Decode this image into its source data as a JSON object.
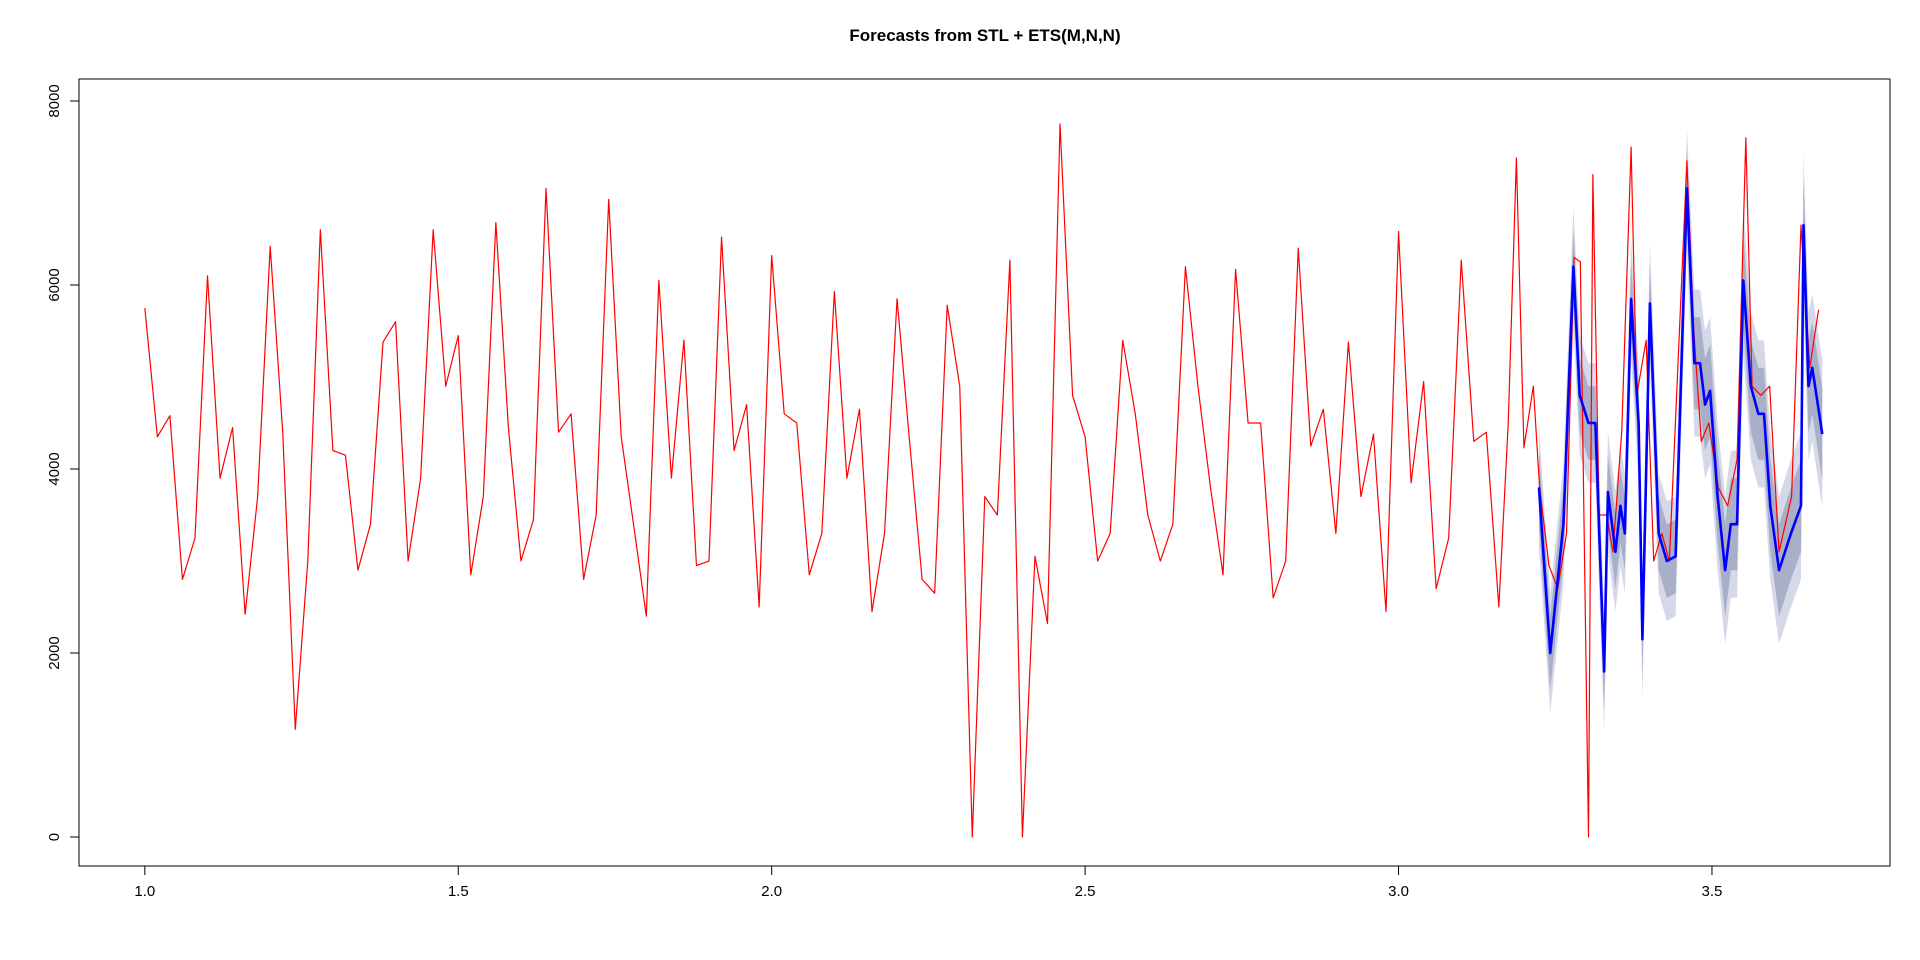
{
  "chart_data": {
    "type": "line",
    "title": "Forecasts from STL +  ETS(M,N,N)",
    "xlim": [
      0.895,
      3.784
    ],
    "ylim": [
      -315,
      8239
    ],
    "xticks": [
      {
        "value": 1,
        "label": "1.0"
      },
      1.5,
      {
        "value": 2,
        "label": "2.0"
      },
      2.5,
      {
        "value": 3,
        "label": "3.0"
      },
      3.5
    ],
    "yticks": [
      0,
      2000,
      4000,
      6000,
      8000
    ],
    "series": [
      {
        "color": "#ff0000",
        "x": [
          1,
          1.02,
          1.04,
          1.06,
          1.08,
          1.1,
          1.12,
          1.14,
          1.16,
          1.18,
          1.2,
          1.22,
          1.24,
          1.26,
          1.28,
          1.3,
          1.32,
          1.34,
          1.36,
          1.38,
          1.4,
          1.42,
          1.44,
          1.46,
          1.48,
          1.5,
          1.52,
          1.54,
          1.56,
          1.58,
          1.6,
          1.62,
          1.64,
          1.66,
          1.68,
          1.7,
          1.72,
          1.74,
          1.76,
          1.78,
          1.8,
          1.82,
          1.84,
          1.86,
          1.88,
          1.9,
          1.92,
          1.94,
          1.96,
          1.98,
          2,
          2.02,
          2.04,
          2.06,
          2.08,
          2.1,
          2.12,
          2.14,
          2.16,
          2.18,
          2.2,
          2.22,
          2.24,
          2.26,
          2.28,
          2.3,
          2.32,
          2.34,
          2.36,
          2.38,
          2.4,
          2.42,
          2.44,
          2.46,
          2.48,
          2.5,
          2.52,
          2.54,
          2.56,
          2.58,
          2.6,
          2.62,
          2.64,
          2.66,
          2.68,
          2.7,
          2.72,
          2.74,
          2.76,
          2.78,
          2.8,
          2.82,
          2.84,
          2.86,
          2.88,
          2.9,
          2.92,
          2.94,
          2.96,
          2.98,
          3,
          3.02,
          3.04,
          3.06,
          3.08,
          3.1,
          3.12,
          3.14,
          3.16,
          3.175,
          3.188,
          3.2,
          3.215,
          3.225,
          3.24,
          3.254,
          3.268,
          3.28,
          3.29,
          3.303,
          3.31,
          3.32,
          3.332,
          3.342,
          3.356,
          3.371,
          3.38,
          3.395,
          3.407,
          3.42,
          3.432,
          3.46,
          3.47,
          3.483,
          3.495,
          3.51,
          3.525,
          3.54,
          3.554,
          3.564,
          3.578,
          3.592,
          3.607,
          3.627,
          3.642,
          3.656,
          3.67
        ],
        "values": [
          5750,
          4350,
          4580,
          2800,
          3250,
          6100,
          3900,
          4450,
          2420,
          3700,
          6420,
          4400,
          1170,
          3000,
          6600,
          4200,
          4150,
          2900,
          3400,
          5380,
          5600,
          3000,
          3900,
          6600,
          4900,
          5450,
          2850,
          3700,
          6680,
          4450,
          3000,
          3450,
          7050,
          4400,
          4600,
          2800,
          3500,
          6930,
          4350,
          3380,
          2400,
          6050,
          3900,
          5400,
          2950,
          3000,
          6520,
          4200,
          4700,
          2500,
          6320,
          4600,
          4500,
          2850,
          3300,
          5930,
          3900,
          4650,
          2450,
          3300,
          5850,
          4300,
          2800,
          2650,
          5780,
          4900,
          0,
          3700,
          3500,
          6270,
          0,
          3050,
          2320,
          7750,
          4800,
          4350,
          3000,
          3300,
          5400,
          4600,
          3500,
          3000,
          3400,
          6200,
          4900,
          3800,
          2850,
          6170,
          4500,
          4500,
          2600,
          3000,
          6400,
          4250,
          4650,
          3300,
          5380,
          3700,
          4380,
          2450,
          6580,
          3850,
          4950,
          2700,
          3250,
          6270,
          4300,
          4400,
          2500,
          4500,
          7380,
          4230,
          4900,
          3800,
          2950,
          2700,
          3300,
          6300,
          6250,
          0,
          7200,
          3500,
          3500,
          3100,
          4400,
          7500,
          4800,
          5400,
          3000,
          3300,
          3000,
          7350,
          5600,
          4300,
          4500,
          3800,
          3600,
          4100,
          7600,
          4900,
          4800,
          4900,
          3100,
          3700,
          6650,
          5100,
          5730
        ]
      },
      {
        "color": "#0000ff",
        "x": [
          3.224,
          3.242,
          3.263,
          3.279,
          3.289,
          3.303,
          3.314,
          3.328,
          3.334,
          3.346,
          3.354,
          3.361,
          3.371,
          3.383,
          3.389,
          3.401,
          3.415,
          3.428,
          3.442,
          3.46,
          3.472,
          3.481,
          3.489,
          3.497,
          3.509,
          3.521,
          3.53,
          3.54,
          3.55,
          3.562,
          3.574,
          3.583,
          3.593,
          3.607,
          3.626,
          3.642,
          3.646,
          3.654,
          3.66,
          3.676
        ],
        "values": [
          3800,
          2000,
          3400,
          6200,
          4800,
          4500,
          4500,
          1800,
          3750,
          3100,
          3600,
          3300,
          5850,
          4500,
          2150,
          5800,
          3300,
          3000,
          3050,
          7050,
          5150,
          5150,
          4700,
          4850,
          3700,
          2900,
          3400,
          3400,
          6050,
          4900,
          4600,
          4600,
          3600,
          2900,
          3300,
          3600,
          6650,
          4900,
          5100,
          4380
        ],
        "bands": [
          {
            "color": "#d5d8e6",
            "lower": [
              3150,
              1350,
              2750,
              5550,
              4150,
              3850,
              3850,
              1150,
              3100,
              2450,
              2950,
              2650,
              5200,
              3850,
              1500,
              5150,
              2650,
              2350,
              2400,
              6400,
              4350,
              4350,
              3900,
              4050,
              2900,
              2100,
              2600,
              2600,
              5250,
              4100,
              3800,
              3800,
              2800,
              2100,
              2500,
              2800,
              5850,
              4100,
              4300,
              3580
            ],
            "upper": [
              4450,
              2650,
              4050,
              6850,
              5450,
              5150,
              5150,
              2450,
              4400,
              3750,
              4250,
              3950,
              6500,
              5150,
              2800,
              6450,
              3950,
              3650,
              3700,
              7700,
              5950,
              5950,
              5500,
              5650,
              4500,
              3700,
              4200,
              4200,
              6850,
              5700,
              5400,
              5400,
              4400,
              3700,
              4100,
              4400,
              7450,
              5700,
              5900,
              5180
            ]
          },
          {
            "color": "#a9aec9",
            "lower": [
              3400,
              1600,
              3000,
              5800,
              4400,
              4100,
              4100,
              1400,
              3350,
              2700,
              3200,
              2900,
              5450,
              4100,
              1750,
              5400,
              2900,
              2600,
              2650,
              6650,
              4650,
              4650,
              4200,
              4350,
              3200,
              2400,
              2900,
              2900,
              5550,
              4400,
              4100,
              4100,
              3100,
              2400,
              2800,
              3100,
              6150,
              4400,
              4600,
              3880
            ],
            "upper": [
              4200,
              2400,
              3800,
              6600,
              5200,
              4900,
              4900,
              2200,
              4150,
              3500,
              4000,
              3700,
              6250,
              4900,
              2550,
              6200,
              3700,
              3400,
              3450,
              7450,
              5650,
              5650,
              5200,
              5350,
              4200,
              3400,
              3900,
              3900,
              6550,
              5400,
              5100,
              5100,
              4100,
              3400,
              3800,
              4100,
              7150,
              5400,
              5600,
              4880
            ]
          }
        ]
      }
    ]
  }
}
